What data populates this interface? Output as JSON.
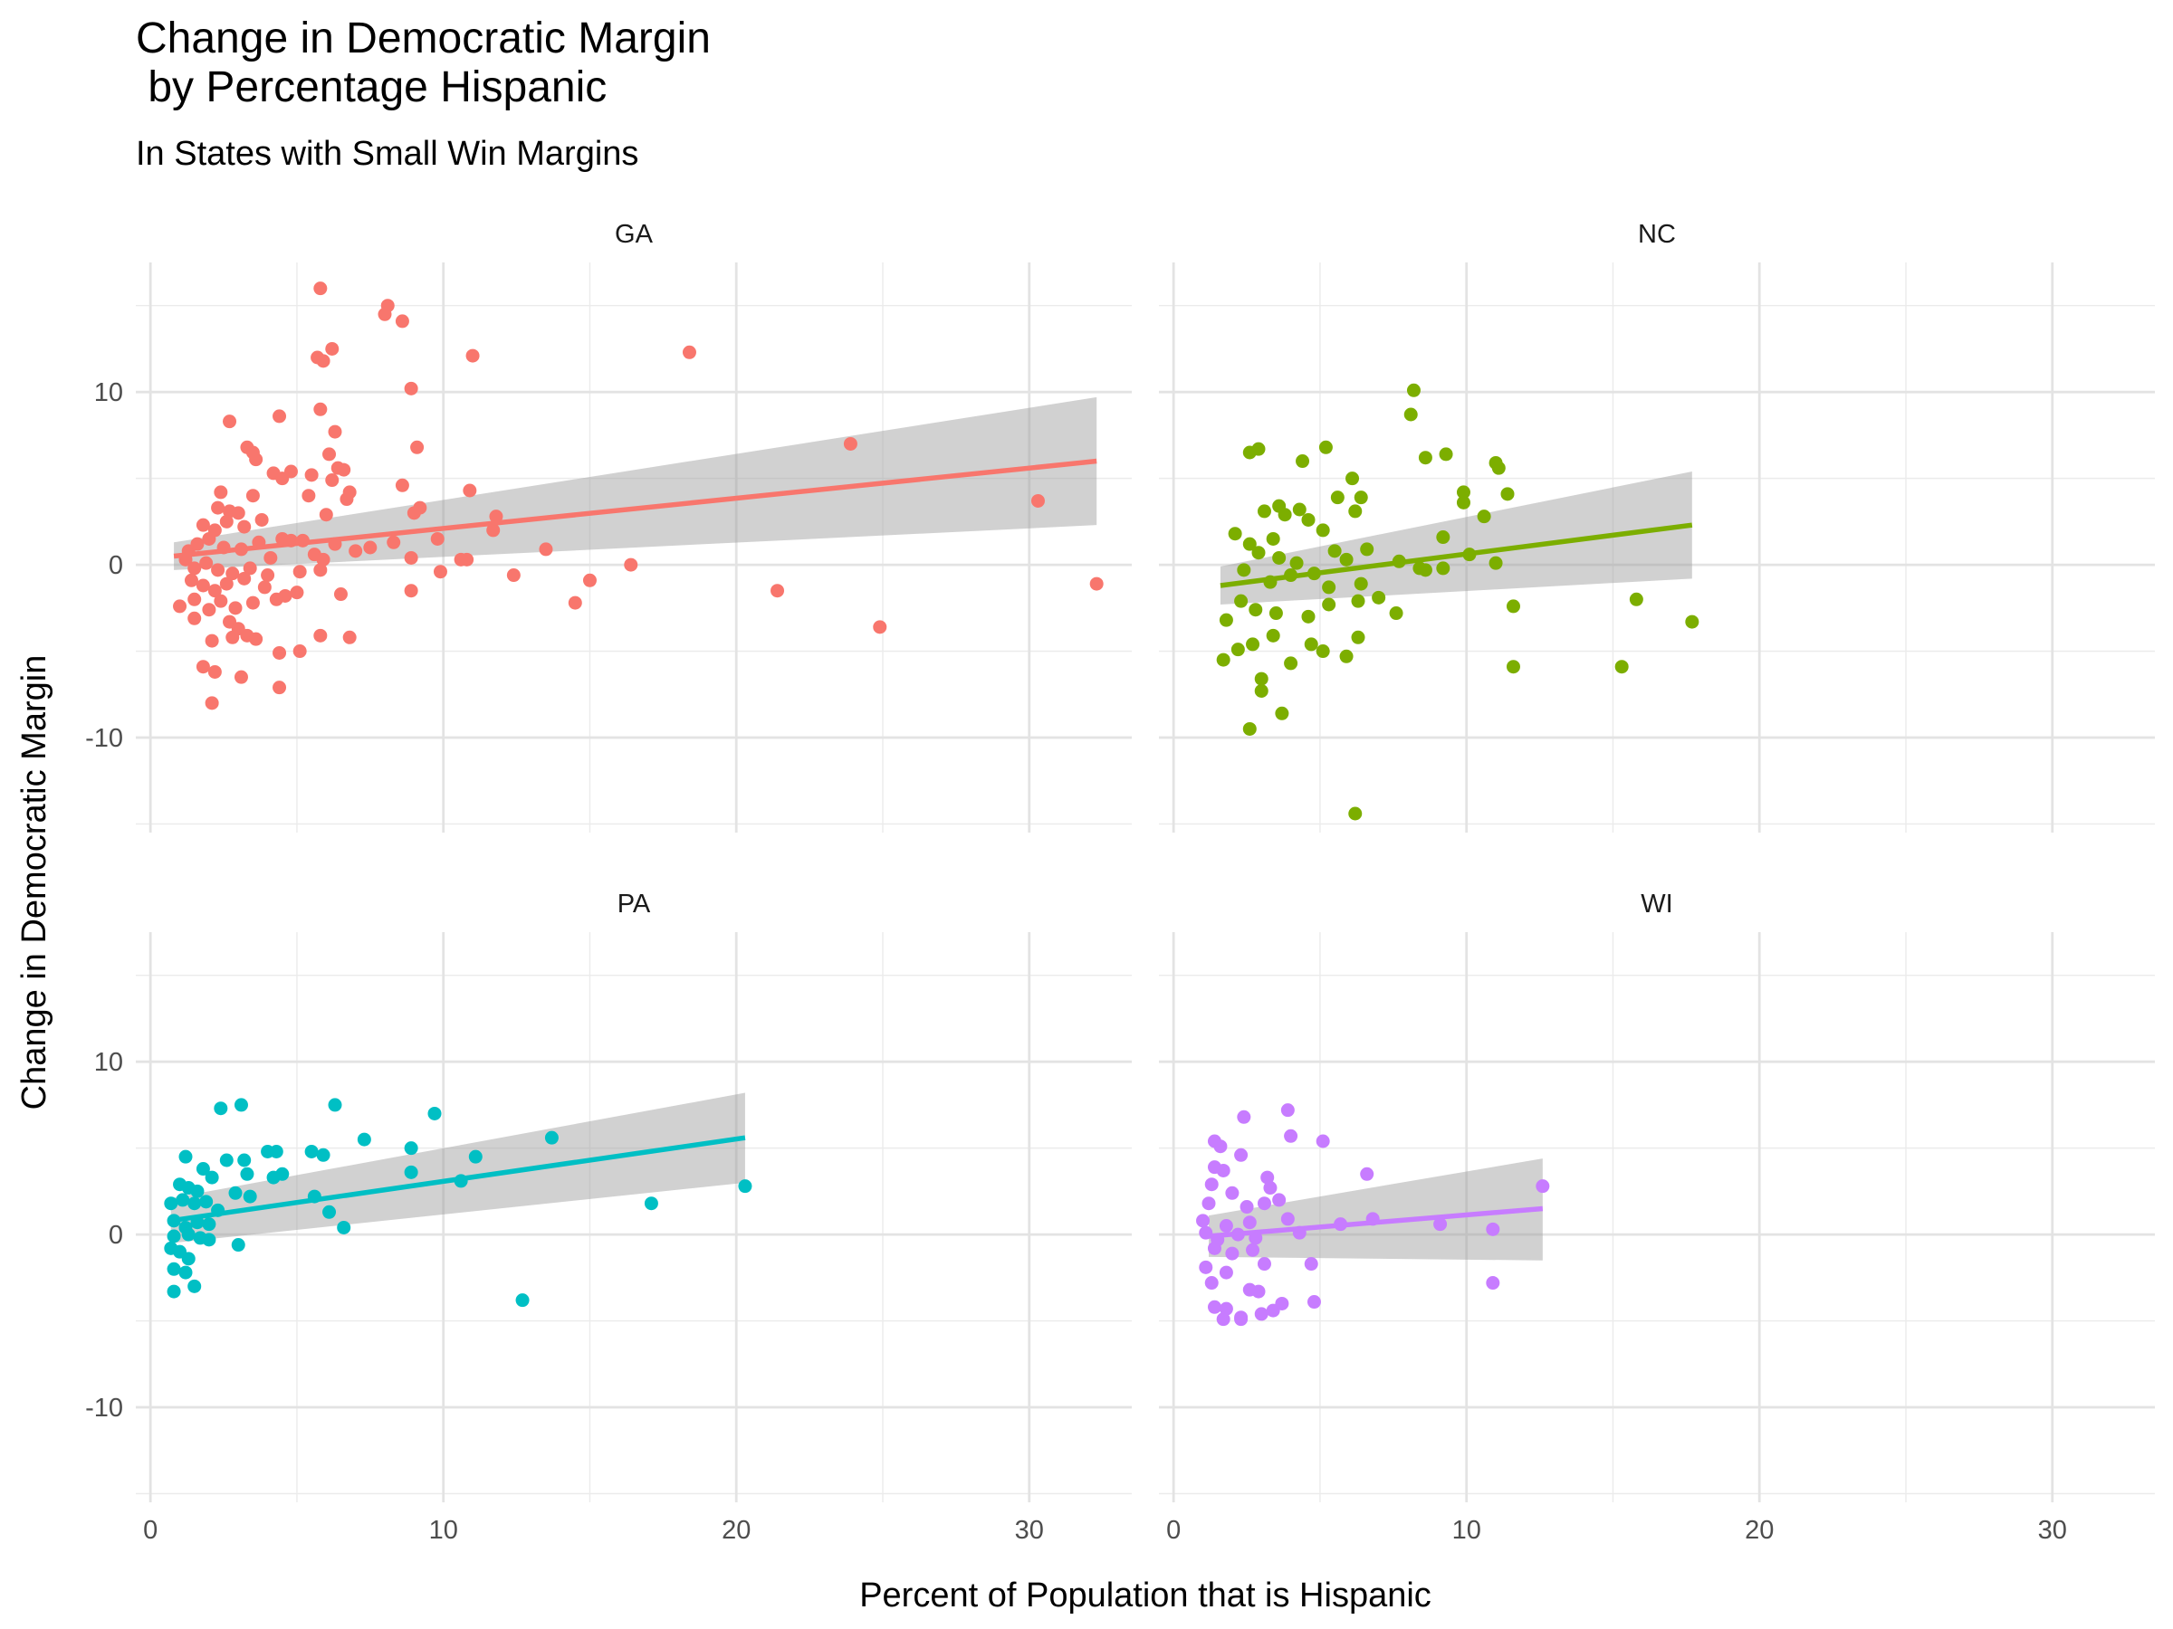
{
  "chart_data": {
    "type": "scatter",
    "title": "Change in Democratic Margin\n by Percentage Hispanic",
    "subtitle": "In States with Small Win Margins",
    "xlabel": "Percent of Population that is Hispanic",
    "ylabel": "Change in Democratic Margin",
    "xlim": [
      -0.5,
      33.5
    ],
    "ylim": [
      -15.5,
      17.5
    ],
    "x_ticks": [
      0,
      10,
      20,
      30
    ],
    "y_ticks": [
      -10,
      0,
      10
    ],
    "grid": true,
    "legend": "none",
    "smooth": "linear fit with confidence band",
    "panels": [
      {
        "name": "GA",
        "color": "#F8766D",
        "fit": {
          "x": [
            0.8,
            32.3
          ],
          "y": [
            0.5,
            6.0
          ],
          "band_lower_end": [
            -0.3,
            2.3
          ],
          "band_upper_end": [
            1.3,
            9.7
          ]
        },
        "points": [
          [
            5.8,
            16.0
          ],
          [
            8.1,
            15.0
          ],
          [
            8.0,
            14.5
          ],
          [
            8.6,
            14.1
          ],
          [
            6.2,
            12.5
          ],
          [
            5.7,
            12.0
          ],
          [
            5.9,
            11.8
          ],
          [
            11.0,
            12.1
          ],
          [
            18.4,
            12.3
          ],
          [
            8.9,
            10.2
          ],
          [
            5.8,
            9.0
          ],
          [
            2.7,
            8.3
          ],
          [
            4.4,
            8.6
          ],
          [
            6.3,
            7.7
          ],
          [
            9.1,
            6.8
          ],
          [
            3.3,
            6.8
          ],
          [
            23.9,
            7.0
          ],
          [
            3.6,
            6.1
          ],
          [
            6.1,
            6.4
          ],
          [
            3.5,
            6.5
          ],
          [
            6.4,
            5.6
          ],
          [
            6.6,
            5.5
          ],
          [
            4.2,
            5.3
          ],
          [
            4.5,
            5.0
          ],
          [
            4.8,
            5.4
          ],
          [
            5.5,
            5.2
          ],
          [
            8.6,
            4.6
          ],
          [
            6.8,
            4.2
          ],
          [
            6.2,
            4.9
          ],
          [
            2.4,
            4.2
          ],
          [
            3.5,
            4.0
          ],
          [
            5.4,
            4.0
          ],
          [
            10.9,
            4.3
          ],
          [
            6.7,
            3.8
          ],
          [
            9.0,
            3.0
          ],
          [
            9.2,
            3.3
          ],
          [
            11.8,
            2.8
          ],
          [
            6.0,
            2.9
          ],
          [
            2.3,
            3.3
          ],
          [
            2.7,
            3.1
          ],
          [
            3.0,
            3.0
          ],
          [
            3.8,
            2.6
          ],
          [
            30.3,
            3.7
          ],
          [
            1.8,
            2.3
          ],
          [
            2.2,
            2.0
          ],
          [
            2.6,
            2.5
          ],
          [
            3.2,
            2.2
          ],
          [
            4.5,
            1.5
          ],
          [
            4.8,
            1.4
          ],
          [
            5.2,
            1.4
          ],
          [
            6.3,
            1.2
          ],
          [
            7.5,
            1.0
          ],
          [
            8.3,
            1.3
          ],
          [
            9.8,
            1.5
          ],
          [
            10.8,
            0.3
          ],
          [
            11.7,
            2.0
          ],
          [
            13.5,
            0.9
          ],
          [
            1.3,
            0.8
          ],
          [
            1.6,
            1.2
          ],
          [
            2.0,
            1.5
          ],
          [
            2.5,
            1.0
          ],
          [
            3.1,
            0.9
          ],
          [
            3.7,
            1.3
          ],
          [
            4.1,
            0.4
          ],
          [
            5.6,
            0.6
          ],
          [
            5.9,
            0.3
          ],
          [
            7.0,
            0.8
          ],
          [
            8.9,
            0.4
          ],
          [
            10.6,
            0.3
          ],
          [
            16.4,
            0.0
          ],
          [
            1.2,
            0.3
          ],
          [
            1.5,
            -0.2
          ],
          [
            1.9,
            0.1
          ],
          [
            2.3,
            -0.3
          ],
          [
            2.8,
            -0.5
          ],
          [
            3.4,
            -0.2
          ],
          [
            4.0,
            -0.6
          ],
          [
            5.1,
            -0.4
          ],
          [
            5.8,
            -0.3
          ],
          [
            9.9,
            -0.4
          ],
          [
            12.4,
            -0.6
          ],
          [
            1.4,
            -0.9
          ],
          [
            1.8,
            -1.2
          ],
          [
            2.2,
            -1.5
          ],
          [
            2.6,
            -1.1
          ],
          [
            3.2,
            -0.8
          ],
          [
            3.9,
            -1.3
          ],
          [
            4.6,
            -1.8
          ],
          [
            5.0,
            -1.6
          ],
          [
            6.5,
            -1.7
          ],
          [
            8.9,
            -1.5
          ],
          [
            15.0,
            -0.9
          ],
          [
            21.4,
            -1.5
          ],
          [
            32.3,
            -1.1
          ],
          [
            1.0,
            -2.4
          ],
          [
            1.5,
            -2.0
          ],
          [
            2.0,
            -2.6
          ],
          [
            2.4,
            -2.1
          ],
          [
            2.9,
            -2.5
          ],
          [
            3.5,
            -2.2
          ],
          [
            4.3,
            -2.0
          ],
          [
            14.5,
            -2.2
          ],
          [
            2.7,
            -3.3
          ],
          [
            3.0,
            -3.7
          ],
          [
            2.1,
            -4.4
          ],
          [
            2.8,
            -4.2
          ],
          [
            3.3,
            -4.1
          ],
          [
            3.6,
            -4.3
          ],
          [
            5.8,
            -4.1
          ],
          [
            6.8,
            -4.2
          ],
          [
            4.4,
            -5.1
          ],
          [
            5.1,
            -5.0
          ],
          [
            24.9,
            -3.6
          ],
          [
            1.8,
            -5.9
          ],
          [
            2.2,
            -6.2
          ],
          [
            3.1,
            -6.5
          ],
          [
            4.4,
            -7.1
          ],
          [
            2.1,
            -8.0
          ],
          [
            1.5,
            -3.1
          ]
        ]
      },
      {
        "name": "NC",
        "color": "#7CAE00",
        "fit": {
          "x": [
            1.6,
            17.7
          ],
          "y": [
            -1.2,
            2.3
          ],
          "band_lower_end": [
            -2.3,
            -0.8
          ],
          "band_upper_end": [
            -0.1,
            5.4
          ]
        },
        "points": [
          [
            8.2,
            10.1
          ],
          [
            8.1,
            8.7
          ],
          [
            2.6,
            6.5
          ],
          [
            2.9,
            6.7
          ],
          [
            4.4,
            6.0
          ],
          [
            5.2,
            6.8
          ],
          [
            8.6,
            6.2
          ],
          [
            9.3,
            6.4
          ],
          [
            11.0,
            5.9
          ],
          [
            11.1,
            5.6
          ],
          [
            6.1,
            5.0
          ],
          [
            3.1,
            3.1
          ],
          [
            3.6,
            3.4
          ],
          [
            4.3,
            3.2
          ],
          [
            5.6,
            3.9
          ],
          [
            6.4,
            3.9
          ],
          [
            9.9,
            4.2
          ],
          [
            9.9,
            3.6
          ],
          [
            11.4,
            4.1
          ],
          [
            10.6,
            2.8
          ],
          [
            2.1,
            1.8
          ],
          [
            2.6,
            1.2
          ],
          [
            3.4,
            1.5
          ],
          [
            3.8,
            2.9
          ],
          [
            4.6,
            2.6
          ],
          [
            5.1,
            2.0
          ],
          [
            6.2,
            3.1
          ],
          [
            9.2,
            1.6
          ],
          [
            2.9,
            0.7
          ],
          [
            3.6,
            0.4
          ],
          [
            4.2,
            0.1
          ],
          [
            5.5,
            0.8
          ],
          [
            5.9,
            0.3
          ],
          [
            6.6,
            0.9
          ],
          [
            7.7,
            0.2
          ],
          [
            8.4,
            -0.2
          ],
          [
            10.1,
            0.6
          ],
          [
            11.0,
            0.1
          ],
          [
            2.4,
            -0.3
          ],
          [
            3.3,
            -1.0
          ],
          [
            4.0,
            -0.6
          ],
          [
            4.8,
            -0.5
          ],
          [
            5.3,
            -1.3
          ],
          [
            6.4,
            -1.1
          ],
          [
            7.0,
            -1.9
          ],
          [
            8.6,
            -0.3
          ],
          [
            9.2,
            -0.2
          ],
          [
            1.8,
            -3.2
          ],
          [
            2.3,
            -2.1
          ],
          [
            2.8,
            -2.6
          ],
          [
            3.5,
            -2.8
          ],
          [
            4.6,
            -3.0
          ],
          [
            5.3,
            -2.3
          ],
          [
            6.3,
            -2.1
          ],
          [
            7.6,
            -2.8
          ],
          [
            11.6,
            -2.4
          ],
          [
            15.8,
            -2.0
          ],
          [
            17.7,
            -3.3
          ],
          [
            1.7,
            -5.5
          ],
          [
            2.2,
            -4.9
          ],
          [
            2.7,
            -4.6
          ],
          [
            3.4,
            -4.1
          ],
          [
            4.0,
            -5.7
          ],
          [
            4.7,
            -4.6
          ],
          [
            5.1,
            -5.0
          ],
          [
            5.9,
            -5.3
          ],
          [
            6.3,
            -4.2
          ],
          [
            11.6,
            -5.9
          ],
          [
            15.3,
            -5.9
          ],
          [
            3.0,
            -6.6
          ],
          [
            3.0,
            -7.3
          ],
          [
            3.7,
            -8.6
          ],
          [
            2.6,
            -9.5
          ],
          [
            6.2,
            -14.4
          ]
        ]
      },
      {
        "name": "PA",
        "color": "#00BFC4",
        "fit": {
          "x": [
            0.7,
            20.3
          ],
          "y": [
            0.8,
            5.6
          ],
          "band_lower_end": [
            -0.5,
            3.0
          ],
          "band_upper_end": [
            2.1,
            8.2
          ]
        },
        "points": [
          [
            2.4,
            7.3
          ],
          [
            3.1,
            7.5
          ],
          [
            6.3,
            7.5
          ],
          [
            9.7,
            7.0
          ],
          [
            7.3,
            5.5
          ],
          [
            13.7,
            5.6
          ],
          [
            5.5,
            4.8
          ],
          [
            5.9,
            4.6
          ],
          [
            8.9,
            5.0
          ],
          [
            11.1,
            4.5
          ],
          [
            1.2,
            4.5
          ],
          [
            2.6,
            4.3
          ],
          [
            3.2,
            4.3
          ],
          [
            4.0,
            4.8
          ],
          [
            4.3,
            4.8
          ],
          [
            1.8,
            3.8
          ],
          [
            2.1,
            3.3
          ],
          [
            3.3,
            3.5
          ],
          [
            4.2,
            3.3
          ],
          [
            4.5,
            3.5
          ],
          [
            8.9,
            3.6
          ],
          [
            10.6,
            3.1
          ],
          [
            1.0,
            2.9
          ],
          [
            1.3,
            2.7
          ],
          [
            1.6,
            2.5
          ],
          [
            2.9,
            2.4
          ],
          [
            3.4,
            2.2
          ],
          [
            5.6,
            2.2
          ],
          [
            0.7,
            1.8
          ],
          [
            1.1,
            2.0
          ],
          [
            1.5,
            1.8
          ],
          [
            1.9,
            1.9
          ],
          [
            2.3,
            1.4
          ],
          [
            6.1,
            1.3
          ],
          [
            17.1,
            1.8
          ],
          [
            20.3,
            2.8
          ],
          [
            0.8,
            0.8
          ],
          [
            1.2,
            0.4
          ],
          [
            1.6,
            0.7
          ],
          [
            2.0,
            0.6
          ],
          [
            6.6,
            0.4
          ],
          [
            0.8,
            -0.1
          ],
          [
            1.3,
            0.0
          ],
          [
            1.7,
            -0.2
          ],
          [
            2.0,
            -0.3
          ],
          [
            3.0,
            -0.6
          ],
          [
            0.7,
            -0.8
          ],
          [
            1.0,
            -1.0
          ],
          [
            1.3,
            -1.4
          ],
          [
            0.8,
            -2.0
          ],
          [
            1.2,
            -2.2
          ],
          [
            0.8,
            -3.3
          ],
          [
            1.5,
            -3.0
          ],
          [
            12.7,
            -3.8
          ]
        ]
      },
      {
        "name": "WI",
        "color": "#C77CFF",
        "fit": {
          "x": [
            1.2,
            12.6
          ],
          "y": [
            -0.1,
            1.5
          ],
          "band_lower_end": [
            -1.3,
            -1.5
          ],
          "band_upper_end": [
            1.1,
            4.4
          ]
        },
        "points": [
          [
            3.9,
            7.2
          ],
          [
            2.4,
            6.8
          ],
          [
            4.0,
            5.7
          ],
          [
            1.4,
            5.4
          ],
          [
            1.6,
            5.1
          ],
          [
            5.1,
            5.4
          ],
          [
            2.3,
            4.6
          ],
          [
            1.4,
            3.9
          ],
          [
            1.7,
            3.7
          ],
          [
            3.2,
            3.3
          ],
          [
            6.6,
            3.5
          ],
          [
            12.6,
            2.8
          ],
          [
            1.3,
            2.9
          ],
          [
            2.0,
            2.4
          ],
          [
            3.3,
            2.7
          ],
          [
            3.6,
            2.0
          ],
          [
            1.2,
            1.8
          ],
          [
            2.5,
            1.6
          ],
          [
            3.1,
            1.8
          ],
          [
            1.0,
            0.8
          ],
          [
            1.8,
            0.5
          ],
          [
            2.6,
            0.7
          ],
          [
            3.9,
            0.9
          ],
          [
            5.7,
            0.6
          ],
          [
            6.8,
            0.9
          ],
          [
            9.1,
            0.6
          ],
          [
            10.9,
            0.3
          ],
          [
            1.1,
            0.1
          ],
          [
            1.5,
            -0.3
          ],
          [
            2.2,
            0.0
          ],
          [
            2.8,
            -0.2
          ],
          [
            4.3,
            0.1
          ],
          [
            1.4,
            -0.8
          ],
          [
            2.0,
            -1.1
          ],
          [
            2.7,
            -0.9
          ],
          [
            1.1,
            -1.9
          ],
          [
            1.8,
            -2.2
          ],
          [
            3.1,
            -1.7
          ],
          [
            4.7,
            -1.7
          ],
          [
            1.3,
            -2.8
          ],
          [
            2.6,
            -3.2
          ],
          [
            2.9,
            -3.3
          ],
          [
            1.4,
            -4.2
          ],
          [
            1.8,
            -4.3
          ],
          [
            2.3,
            -4.8
          ],
          [
            3.0,
            -4.6
          ],
          [
            3.4,
            -4.4
          ],
          [
            3.7,
            -4.0
          ],
          [
            4.8,
            -3.9
          ],
          [
            10.9,
            -2.8
          ],
          [
            1.7,
            -4.9
          ],
          [
            2.3,
            -4.9
          ]
        ]
      }
    ]
  }
}
